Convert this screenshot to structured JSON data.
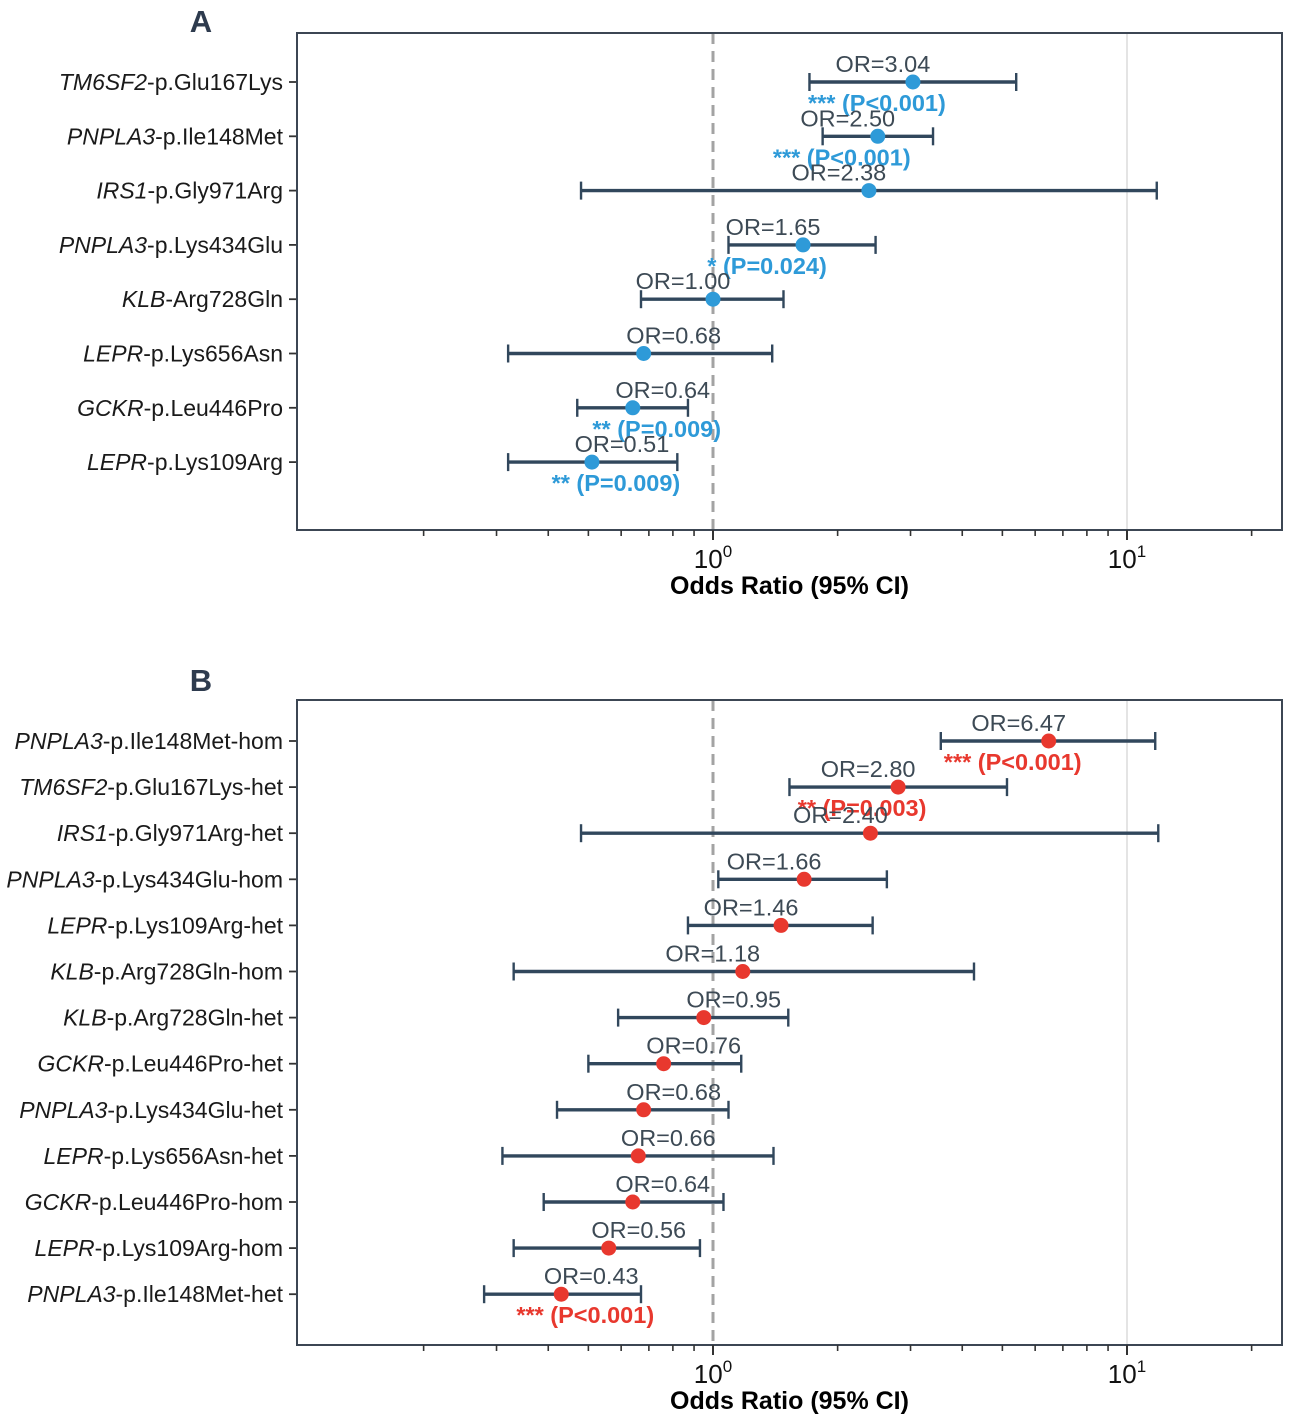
{
  "figure": {
    "background": "#ffffff",
    "x_axis": {
      "label": "Odds Ratio (95% CI)",
      "scale": "log10",
      "xlim": [
        0.099,
        23.7
      ],
      "major_ticks": [
        1,
        10
      ],
      "major_tick_labels": [
        {
          "base": "10",
          "exponent": "0"
        },
        {
          "base": "10",
          "exponent": "1"
        }
      ],
      "minor_ticks": [
        0.2,
        0.3,
        0.4,
        0.5,
        0.6,
        0.7,
        0.8,
        0.9,
        2,
        3,
        4,
        5,
        6,
        7,
        8,
        9,
        20
      ],
      "reference_line_x": 1.0
    },
    "colors": {
      "error_bar": "#31475c",
      "or_label_text": "#3d4a55",
      "row_label_text": "#1a1a1a",
      "title_text": "#2e3b4e",
      "panel_a_accent": "#2e9ad8",
      "panel_b_accent": "#e8382e",
      "reference_line": "#a3a3a3",
      "gridline": "#dedede",
      "axis_border": "#3c4653",
      "tick": "#333333",
      "tick_label": "#111111",
      "axis_label": "#000000"
    }
  },
  "chart_data": [
    {
      "panel_title": "A",
      "type": "scatter",
      "subtype": "forest-plot",
      "xlabel": "Odds Ratio (95% CI)",
      "xscale": "log",
      "xlim": [
        0.099,
        23.7
      ],
      "reference_line": 1.0,
      "accent_color": "#2e9ad8",
      "rows": [
        {
          "gene": "TM6SF2",
          "variant": "-p.Glu167Lys",
          "or": 3.04,
          "ci_low": 1.71,
          "ci_high": 5.4,
          "or_label": "OR=3.04",
          "sig_label": "*** (P<0.001)"
        },
        {
          "gene": "PNPLA3",
          "variant": "-p.Ile148Met",
          "or": 2.5,
          "ci_low": 1.84,
          "ci_high": 3.4,
          "or_label": "OR=2.50",
          "sig_label": "*** (P<0.001)"
        },
        {
          "gene": "IRS1",
          "variant": "-p.Gly971Arg",
          "or": 2.38,
          "ci_low": 0.48,
          "ci_high": 11.8,
          "or_label": "OR=2.38",
          "sig_label": null
        },
        {
          "gene": "PNPLA3",
          "variant": "-p.Lys434Glu",
          "or": 1.65,
          "ci_low": 1.09,
          "ci_high": 2.47,
          "or_label": "OR=1.65",
          "sig_label": "* (P=0.024)"
        },
        {
          "gene": "KLB",
          "variant": "-Arg728Gln",
          "or": 1.0,
          "ci_low": 0.67,
          "ci_high": 1.48,
          "or_label": "OR=1.00",
          "sig_label": null
        },
        {
          "gene": "LEPR",
          "variant": "-p.Lys656Asn",
          "or": 0.68,
          "ci_low": 0.32,
          "ci_high": 1.39,
          "or_label": "OR=0.68",
          "sig_label": null
        },
        {
          "gene": "GCKR",
          "variant": "-p.Leu446Pro",
          "or": 0.64,
          "ci_low": 0.47,
          "ci_high": 0.87,
          "or_label": "OR=0.64",
          "sig_label": "** (P=0.009)"
        },
        {
          "gene": "LEPR",
          "variant": "-p.Lys109Arg",
          "or": 0.51,
          "ci_low": 0.32,
          "ci_high": 0.82,
          "or_label": "OR=0.51",
          "sig_label": "** (P=0.009)"
        }
      ]
    },
    {
      "panel_title": "B",
      "type": "scatter",
      "subtype": "forest-plot",
      "xlabel": "Odds Ratio (95% CI)",
      "xscale": "log",
      "xlim": [
        0.099,
        23.7
      ],
      "reference_line": 1.0,
      "accent_color": "#e8382e",
      "rows": [
        {
          "gene": "PNPLA3",
          "variant": "-p.Ile148Met-hom",
          "or": 6.47,
          "ci_low": 3.55,
          "ci_high": 11.7,
          "or_label": "OR=6.47",
          "sig_label": "*** (P<0.001)"
        },
        {
          "gene": "TM6SF2",
          "variant": "-p.Glu167Lys-het",
          "or": 2.8,
          "ci_low": 1.53,
          "ci_high": 5.13,
          "or_label": "OR=2.80",
          "sig_label": "** (P=0.003)"
        },
        {
          "gene": "IRS1",
          "variant": "-p.Gly971Arg-het",
          "or": 2.4,
          "ci_low": 0.48,
          "ci_high": 11.9,
          "or_label": "OR=2.40",
          "sig_label": null
        },
        {
          "gene": "PNPLA3",
          "variant": "-p.Lys434Glu-hom",
          "or": 1.66,
          "ci_low": 1.03,
          "ci_high": 2.63,
          "or_label": "OR=1.66",
          "sig_label": null
        },
        {
          "gene": "LEPR",
          "variant": "-p.Lys109Arg-het",
          "or": 1.46,
          "ci_low": 0.87,
          "ci_high": 2.43,
          "or_label": "OR=1.46",
          "sig_label": null
        },
        {
          "gene": "KLB",
          "variant": "-p.Arg728Gln-hom",
          "or": 1.18,
          "ci_low": 0.33,
          "ci_high": 4.27,
          "or_label": "OR=1.18",
          "sig_label": null
        },
        {
          "gene": "KLB",
          "variant": "-p.Arg728Gln-het",
          "or": 0.95,
          "ci_low": 0.59,
          "ci_high": 1.52,
          "or_label": "OR=0.95",
          "sig_label": null
        },
        {
          "gene": "GCKR",
          "variant": "-p.Leu446Pro-het",
          "or": 0.76,
          "ci_low": 0.5,
          "ci_high": 1.17,
          "or_label": "OR=0.76",
          "sig_label": null
        },
        {
          "gene": "PNPLA3",
          "variant": "-p.Lys434Glu-het",
          "or": 0.68,
          "ci_low": 0.42,
          "ci_high": 1.09,
          "or_label": "OR=0.68",
          "sig_label": null
        },
        {
          "gene": "LEPR",
          "variant": "-p.Lys656Asn-het",
          "or": 0.66,
          "ci_low": 0.31,
          "ci_high": 1.4,
          "or_label": "OR=0.66",
          "sig_label": null
        },
        {
          "gene": "GCKR",
          "variant": "-p.Leu446Pro-hom",
          "or": 0.64,
          "ci_low": 0.39,
          "ci_high": 1.06,
          "or_label": "OR=0.64",
          "sig_label": null
        },
        {
          "gene": "LEPR",
          "variant": "-p.Lys109Arg-hom",
          "or": 0.56,
          "ci_low": 0.33,
          "ci_high": 0.93,
          "or_label": "OR=0.56",
          "sig_label": null
        },
        {
          "gene": "PNPLA3",
          "variant": "-p.Ile148Met-het",
          "or": 0.43,
          "ci_low": 0.28,
          "ci_high": 0.67,
          "or_label": "OR=0.43",
          "sig_label": "*** (P<0.001)"
        }
      ]
    }
  ]
}
